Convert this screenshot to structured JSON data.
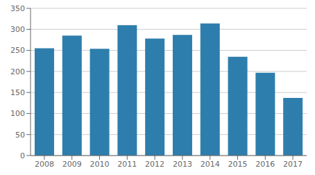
{
  "chart_data": {
    "type": "bar",
    "categories": [
      "2008",
      "2009",
      "2010",
      "2011",
      "2012",
      "2013",
      "2014",
      "2015",
      "2016",
      "2017"
    ],
    "values": [
      255,
      285,
      254,
      310,
      278,
      287,
      314,
      235,
      197,
      137
    ],
    "color": "#2e7ead",
    "ylim": [
      0,
      350
    ],
    "yticks": [
      0,
      50,
      100,
      150,
      200,
      250,
      300,
      350
    ],
    "grid": true
  }
}
